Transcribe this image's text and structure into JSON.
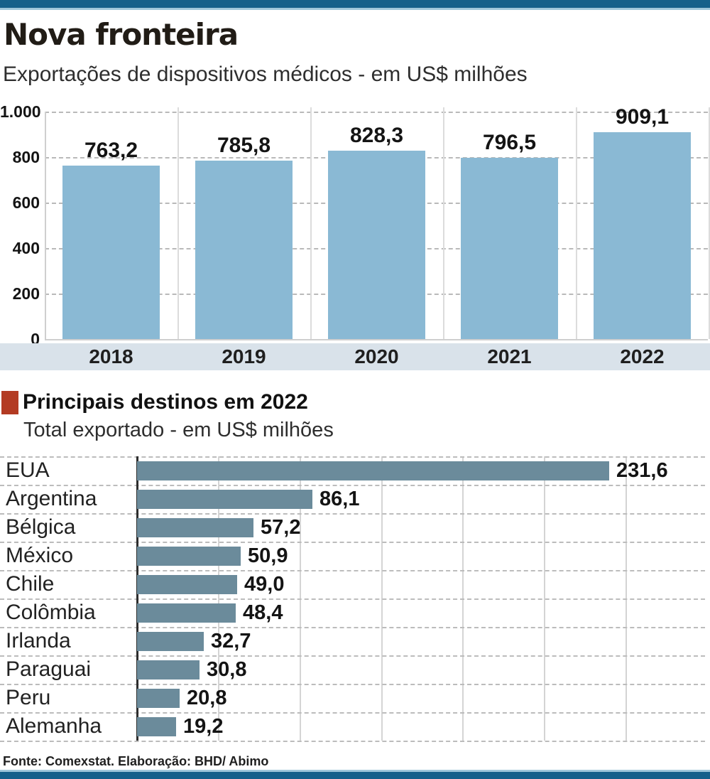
{
  "accent": {
    "bar_color": "#15608a",
    "line_color": "#9fc7da"
  },
  "header": {
    "title": "Nova fronteira",
    "subtitle": "Exportações de dispositivos médicos - em US$ milhões"
  },
  "section2": {
    "marker_color": "#b33b23",
    "title": "Principais destinos em 2022",
    "subtitle": "Total exportado - em US$ milhões"
  },
  "footer": {
    "source": "Fonte: Comexstat. Elaboração: BHD/ Abimo"
  },
  "chart_data": [
    {
      "type": "bar",
      "orientation": "vertical",
      "title": "Exportações de dispositivos médicos - em US$ milhões",
      "categories": [
        "2018",
        "2019",
        "2020",
        "2021",
        "2022"
      ],
      "values": [
        763.2,
        785.8,
        828.3,
        796.5,
        909.1
      ],
      "value_labels": [
        "763,2",
        "785,8",
        "828,3",
        "796,5",
        "909,1"
      ],
      "ylim": [
        0,
        1000
      ],
      "yticks": [
        {
          "label": "1.000",
          "value": 1000
        },
        {
          "label": "800",
          "value": 800
        },
        {
          "label": "600",
          "value": 600
        },
        {
          "label": "400",
          "value": 400
        },
        {
          "label": "200",
          "value": 200
        },
        {
          "label": "0",
          "value": 0
        }
      ],
      "grid": "dashed-horizontal",
      "legend": "none",
      "bar_color": "#8ab9d4"
    },
    {
      "type": "bar",
      "orientation": "horizontal",
      "title": "Principais destinos em 2022",
      "xlabel": "Total exportado - em US$ milhões",
      "categories": [
        "EUA",
        "Argentina",
        "Bélgica",
        "México",
        "Chile",
        "Colômbia",
        "Irlanda",
        "Paraguai",
        "Peru",
        "Alemanha"
      ],
      "values": [
        231.6,
        86.1,
        57.2,
        50.9,
        49.0,
        48.4,
        32.7,
        30.8,
        20.8,
        19.2
      ],
      "value_labels": [
        "231,6",
        "86,1",
        "57,2",
        "50,9",
        "49,0",
        "48,4",
        "32,7",
        "30,8",
        "20,8",
        "19,2"
      ],
      "xlim": [
        0,
        280
      ],
      "grid": "solid-vertical-every-40",
      "legend": "none",
      "bar_color": "#6b8b9b"
    }
  ]
}
